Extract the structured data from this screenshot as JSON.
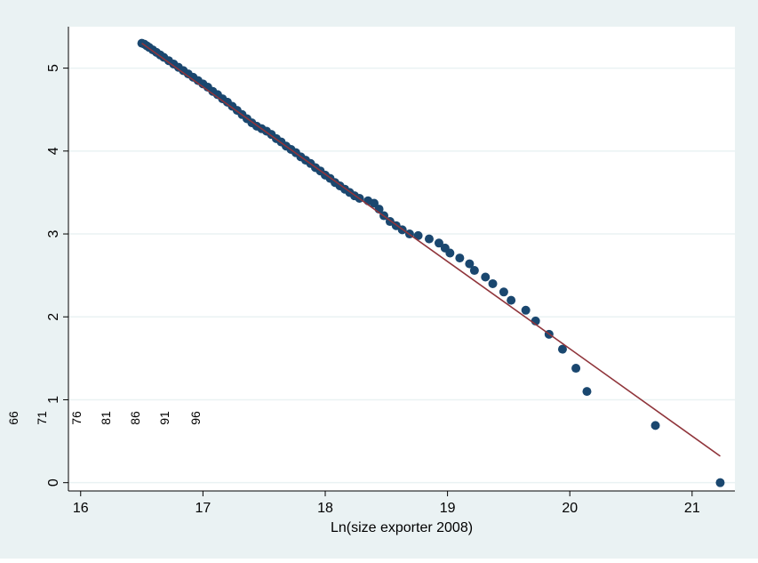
{
  "colors": {
    "outer_bg": "#eaf2f3",
    "plot_bg": "#ffffff",
    "grid": "#eaf2f3",
    "axis": "#000000",
    "marker": "#1a476f",
    "fit_line": "#90353b"
  },
  "chart_data": {
    "type": "scatter",
    "title": "",
    "xlabel": "Ln(size exporter 2008)",
    "ylabel": "",
    "xlim": [
      15.9,
      21.35
    ],
    "ylim": [
      -0.1,
      5.5
    ],
    "x_ticks": [
      16,
      17,
      18,
      19,
      20,
      21
    ],
    "y_ticks": [
      0,
      1,
      2,
      3,
      4,
      5
    ],
    "grid": true,
    "legend": "none",
    "extra_labels": [
      "66",
      "71",
      "76",
      "81",
      "86",
      "91",
      "96"
    ],
    "fit_line": {
      "x": [
        16.5,
        21.23
      ],
      "y": [
        5.3,
        0.32
      ]
    },
    "series": [
      {
        "marker": "filled-circle",
        "x": [
          16.5,
          16.52,
          16.54,
          16.56,
          16.59,
          16.62,
          16.65,
          16.68,
          16.72,
          16.76,
          16.8,
          16.84,
          16.88,
          16.92,
          16.96,
          17.0,
          17.04,
          17.08,
          17.12,
          17.16,
          17.2,
          17.24,
          17.28,
          17.32,
          17.36,
          17.4,
          17.44,
          17.48,
          17.52,
          17.56,
          17.6,
          17.64,
          17.68,
          17.72,
          17.76,
          17.8,
          17.84,
          17.88,
          17.92,
          17.96,
          18.0,
          18.04,
          18.08,
          18.12,
          18.16,
          18.2,
          18.24,
          18.28,
          18.35,
          18.4,
          18.44,
          18.48,
          18.53,
          18.58,
          18.63,
          18.69,
          18.76,
          18.85,
          18.93,
          18.98,
          19.02,
          19.1,
          19.18,
          19.22,
          19.31,
          19.37,
          19.46,
          19.52,
          19.64,
          19.72,
          19.83,
          19.94,
          20.05,
          20.14,
          20.7,
          21.23
        ],
        "y": [
          5.3,
          5.29,
          5.27,
          5.25,
          5.22,
          5.19,
          5.16,
          5.13,
          5.09,
          5.05,
          5.01,
          4.97,
          4.93,
          4.89,
          4.85,
          4.81,
          4.77,
          4.72,
          4.68,
          4.63,
          4.59,
          4.54,
          4.49,
          4.44,
          4.39,
          4.34,
          4.3,
          4.27,
          4.24,
          4.2,
          4.15,
          4.11,
          4.06,
          4.02,
          3.98,
          3.93,
          3.89,
          3.85,
          3.8,
          3.76,
          3.71,
          3.67,
          3.62,
          3.58,
          3.54,
          3.5,
          3.46,
          3.43,
          3.4,
          3.37,
          3.3,
          3.22,
          3.15,
          3.1,
          3.05,
          3.0,
          2.98,
          2.94,
          2.89,
          2.83,
          2.77,
          2.71,
          2.64,
          2.56,
          2.48,
          2.4,
          2.3,
          2.2,
          2.08,
          1.95,
          1.79,
          1.61,
          1.38,
          1.1,
          0.69,
          0.0
        ]
      }
    ]
  }
}
